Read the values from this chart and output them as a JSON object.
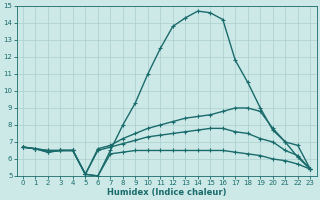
{
  "xlabel": "Humidex (Indice chaleur)",
  "xlim": [
    -0.5,
    23.5
  ],
  "ylim": [
    5,
    15
  ],
  "yticks": [
    5,
    6,
    7,
    8,
    9,
    10,
    11,
    12,
    13,
    14,
    15
  ],
  "xticks": [
    0,
    1,
    2,
    3,
    4,
    5,
    6,
    7,
    8,
    9,
    10,
    11,
    12,
    13,
    14,
    15,
    16,
    17,
    18,
    19,
    20,
    21,
    22,
    23
  ],
  "bg_color": "#cce9e8",
  "grid_color": "#aacece",
  "line_color": "#1a6b6b",
  "line_width": 1.0,
  "marker_size": 3.5,
  "line1": {
    "x": [
      0,
      1,
      2,
      3,
      4,
      5,
      6,
      7,
      8,
      9,
      10,
      11,
      12,
      13,
      14,
      15,
      16,
      17,
      18,
      19,
      20,
      21,
      22,
      23
    ],
    "y": [
      6.7,
      6.6,
      6.4,
      6.5,
      6.5,
      5.1,
      5.0,
      6.5,
      8.0,
      9.3,
      11.0,
      12.5,
      13.8,
      14.3,
      14.7,
      14.6,
      14.2,
      11.8,
      10.5,
      9.0,
      7.7,
      7.0,
      6.1,
      5.4
    ]
  },
  "line2": {
    "x": [
      0,
      1,
      2,
      3,
      4,
      5,
      6,
      7,
      8,
      9,
      10,
      11,
      12,
      13,
      14,
      15,
      16,
      17,
      18,
      19,
      20,
      21,
      22,
      23
    ],
    "y": [
      6.7,
      6.6,
      6.5,
      6.5,
      6.5,
      5.1,
      6.6,
      6.8,
      7.2,
      7.5,
      7.8,
      8.0,
      8.2,
      8.4,
      8.5,
      8.6,
      8.8,
      9.0,
      9.0,
      8.8,
      7.8,
      7.0,
      6.8,
      5.4
    ]
  },
  "line3": {
    "x": [
      0,
      1,
      2,
      3,
      4,
      5,
      6,
      7,
      8,
      9,
      10,
      11,
      12,
      13,
      14,
      15,
      16,
      17,
      18,
      19,
      20,
      21,
      22,
      23
    ],
    "y": [
      6.7,
      6.6,
      6.5,
      6.5,
      6.5,
      5.1,
      6.5,
      6.7,
      6.9,
      7.1,
      7.3,
      7.4,
      7.5,
      7.6,
      7.7,
      7.8,
      7.8,
      7.6,
      7.5,
      7.2,
      7.0,
      6.5,
      6.2,
      5.4
    ]
  },
  "line4": {
    "x": [
      0,
      1,
      2,
      3,
      4,
      5,
      6,
      7,
      8,
      9,
      10,
      11,
      12,
      13,
      14,
      15,
      16,
      17,
      18,
      19,
      20,
      21,
      22,
      23
    ],
    "y": [
      6.7,
      6.6,
      6.4,
      6.5,
      6.5,
      5.1,
      5.0,
      6.3,
      6.4,
      6.5,
      6.5,
      6.5,
      6.5,
      6.5,
      6.5,
      6.5,
      6.5,
      6.4,
      6.3,
      6.2,
      6.0,
      5.9,
      5.7,
      5.4
    ]
  }
}
